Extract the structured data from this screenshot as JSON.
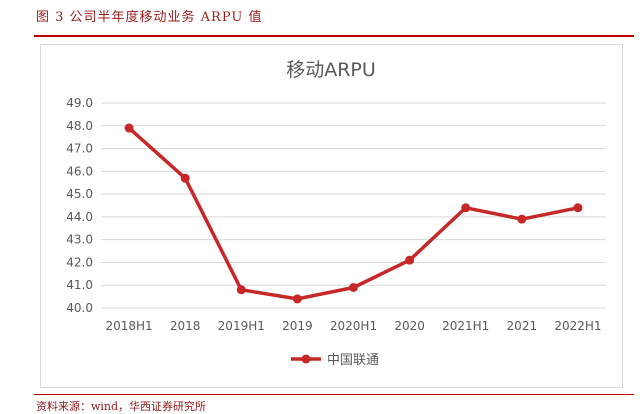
{
  "figure": {
    "caption": "图 3   公司半年度移动业务 ARPU 值",
    "source": "资料来源：wind，华西证券研究所"
  },
  "colors": {
    "accent": "#c00000",
    "series": "#c62828",
    "grid": "#d9d9d9",
    "text": "#595959"
  },
  "chart_data": {
    "type": "line",
    "title": "移动ARPU",
    "xlabel": "",
    "ylabel": "",
    "categories": [
      "2018H1",
      "2018",
      "2019H1",
      "2019",
      "2020H1",
      "2020",
      "2021H1",
      "2021",
      "2022H1"
    ],
    "series": [
      {
        "name": "中国联通",
        "values": [
          47.9,
          45.7,
          40.8,
          40.4,
          40.9,
          42.1,
          44.4,
          43.9,
          44.4
        ]
      }
    ],
    "ylim": [
      40.0,
      49.0
    ],
    "yticks": [
      "40.0",
      "41.0",
      "42.0",
      "43.0",
      "44.0",
      "45.0",
      "46.0",
      "47.0",
      "48.0",
      "49.0"
    ],
    "grid": true,
    "legend": "bottom"
  }
}
